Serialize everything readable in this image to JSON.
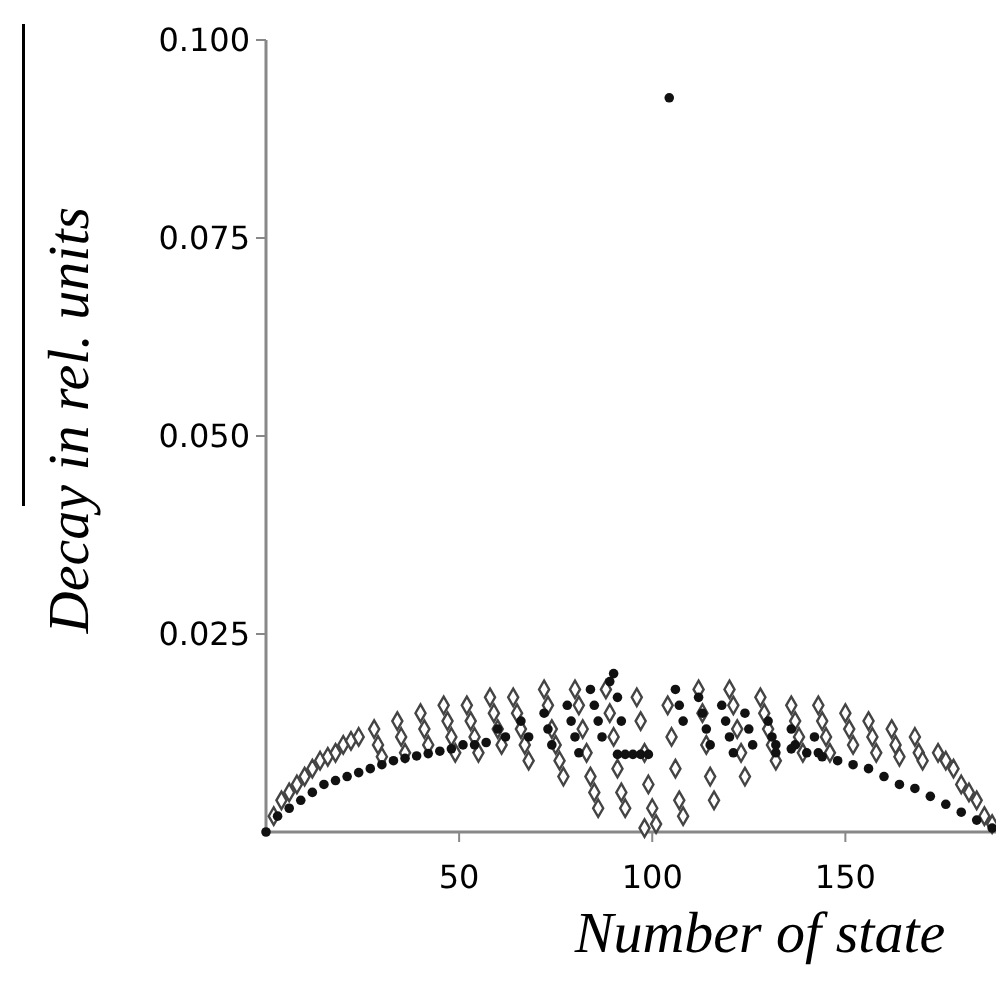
{
  "chart_data": {
    "type": "scatter",
    "xlabel": "Number of state",
    "ylabel": "Decay in rel. units",
    "xlim": [
      0,
      189
    ],
    "ylim": [
      0,
      0.1
    ],
    "xticks": [
      50,
      100,
      150
    ],
    "yticks": [
      0.025,
      {
        "value": 0.05,
        "label": "0.050"
      },
      0.075,
      {
        "value": 0.1,
        "label": "0.100"
      }
    ],
    "grid": false,
    "series": [
      {
        "color": "#444444",
        "marker": "diamond",
        "x": [
          2,
          4,
          6,
          8,
          10,
          12,
          14,
          16,
          18,
          20,
          22,
          24,
          28,
          29,
          30,
          34,
          35,
          36,
          40,
          41,
          42,
          46,
          47,
          48,
          49,
          52,
          53,
          54,
          55,
          58,
          59,
          60,
          61,
          64,
          65,
          66,
          67,
          68,
          72,
          73,
          74,
          75,
          76,
          77,
          80,
          81,
          82,
          83,
          84,
          85,
          86,
          88,
          89,
          90,
          91,
          92,
          93,
          96,
          97,
          98,
          99,
          100,
          101,
          98,
          104,
          105,
          106,
          107,
          108,
          112,
          113,
          114,
          115,
          116,
          120,
          121,
          122,
          123,
          124,
          128,
          129,
          130,
          131,
          132,
          136,
          137,
          138,
          139,
          143,
          144,
          145,
          146,
          150,
          151,
          152,
          156,
          157,
          158,
          162,
          163,
          164,
          168,
          169,
          170,
          174,
          176,
          178,
          180,
          182,
          184,
          186,
          188
        ],
        "values": [
          0.002,
          0.004,
          0.005,
          0.006,
          0.007,
          0.008,
          0.009,
          0.0095,
          0.01,
          0.011,
          0.0115,
          0.012,
          0.013,
          0.011,
          0.0095,
          0.014,
          0.012,
          0.01,
          0.015,
          0.013,
          0.011,
          0.016,
          0.014,
          0.012,
          0.01,
          0.016,
          0.014,
          0.012,
          0.01,
          0.017,
          0.015,
          0.013,
          0.011,
          0.017,
          0.015,
          0.013,
          0.011,
          0.009,
          0.018,
          0.016,
          0.013,
          0.011,
          0.009,
          0.007,
          0.018,
          0.016,
          0.013,
          0.01,
          0.007,
          0.005,
          0.003,
          0.018,
          0.015,
          0.012,
          0.008,
          0.005,
          0.003,
          0.017,
          0.014,
          0.01,
          0.006,
          0.003,
          0.001,
          0.0005,
          0.016,
          0.012,
          0.008,
          0.004,
          0.002,
          0.018,
          0.015,
          0.011,
          0.007,
          0.004,
          0.018,
          0.016,
          0.013,
          0.01,
          0.007,
          0.017,
          0.015,
          0.013,
          0.011,
          0.009,
          0.016,
          0.014,
          0.012,
          0.01,
          0.016,
          0.014,
          0.012,
          0.01,
          0.015,
          0.013,
          0.011,
          0.014,
          0.012,
          0.01,
          0.013,
          0.011,
          0.0095,
          0.012,
          0.01,
          0.009,
          0.01,
          0.009,
          0.008,
          0.006,
          0.005,
          0.004,
          0.002,
          0.001
        ]
      },
      {
        "color": "#111111",
        "marker": "circle",
        "x": [
          0,
          3,
          6,
          9,
          12,
          15,
          18,
          21,
          24,
          27,
          30,
          33,
          36,
          39,
          42,
          45,
          48,
          51,
          54,
          57,
          60,
          62,
          66,
          68,
          72,
          73,
          74,
          78,
          79,
          80,
          81,
          84,
          85,
          86,
          87,
          89,
          90,
          91,
          92,
          91,
          93,
          95,
          97,
          99,
          104.4,
          106,
          107,
          108,
          112,
          113,
          114,
          115,
          118,
          119,
          120,
          121,
          124,
          125,
          126,
          130,
          131,
          132,
          136,
          137,
          142,
          143,
          132,
          136,
          140,
          144,
          148,
          152,
          156,
          160,
          164,
          168,
          172,
          176,
          180,
          184,
          188
        ],
        "values": [
          0,
          0.002,
          0.003,
          0.004,
          0.005,
          0.006,
          0.0065,
          0.007,
          0.0075,
          0.008,
          0.0085,
          0.009,
          0.0093,
          0.0096,
          0.0099,
          0.0102,
          0.0105,
          0.011,
          0.011,
          0.0113,
          0.013,
          0.012,
          0.014,
          0.012,
          0.015,
          0.013,
          0.011,
          0.016,
          0.014,
          0.012,
          0.01,
          0.018,
          0.016,
          0.014,
          0.012,
          0.019,
          0.02,
          0.017,
          0.014,
          0.0098,
          0.0098,
          0.0098,
          0.0098,
          0.0098,
          0.0927,
          0.018,
          0.016,
          0.014,
          0.017,
          0.015,
          0.013,
          0.011,
          0.016,
          0.014,
          0.012,
          0.01,
          0.015,
          0.013,
          0.011,
          0.014,
          0.012,
          0.01,
          0.013,
          0.011,
          0.012,
          0.01,
          0.011,
          0.0105,
          0.01,
          0.0095,
          0.009,
          0.0085,
          0.008,
          0.007,
          0.006,
          0.0055,
          0.0045,
          0.0035,
          0.0025,
          0.0015,
          0.0005
        ]
      }
    ]
  }
}
